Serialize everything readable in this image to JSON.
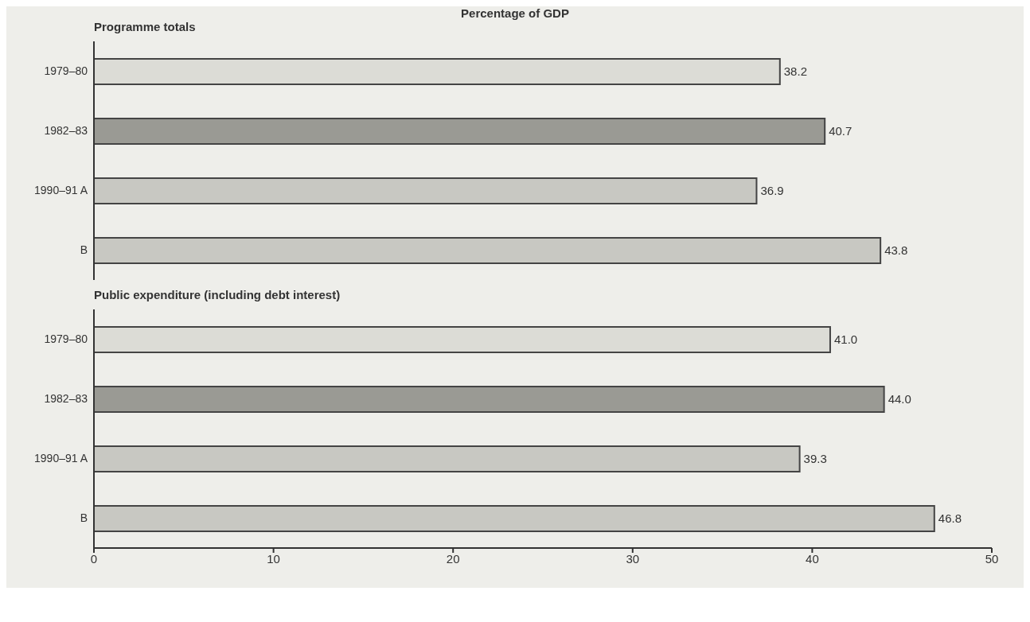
{
  "chart_data": [
    {
      "type": "bar",
      "orientation": "horizontal",
      "title": "Percentage of GDP",
      "subtitle": "Programme totals",
      "categories": [
        "1979–80",
        "1982–83",
        "1990–91 A",
        "B"
      ],
      "values": [
        38.2,
        40.7,
        36.9,
        43.8
      ],
      "value_labels": [
        "38.2",
        "40.7",
        "36.9",
        "43.8"
      ],
      "colors": [
        "#dcdcd6",
        "#9a9a94",
        "#c8c8c2",
        "#c8c8c2"
      ],
      "xlim": [
        0,
        50
      ],
      "xticks": [
        0,
        10,
        20,
        30,
        40,
        50
      ],
      "tick_labels": "y"
    },
    {
      "type": "bar",
      "orientation": "horizontal",
      "title": "Public expenditure (including debt interest)",
      "categories": [
        "1979–80",
        "1982–83",
        "1990–91 A",
        "B"
      ],
      "values": [
        41.0,
        44.0,
        39.3,
        46.8
      ],
      "value_labels": [
        "41.0",
        "44.0",
        "39.3",
        "46.8"
      ],
      "colors": [
        "#dcdcd6",
        "#9a9a94",
        "#c8c8c2",
        "#c8c8c2"
      ],
      "xlim": [
        0,
        50
      ],
      "xticks": [
        0,
        10,
        20,
        30,
        40,
        50
      ]
    }
  ]
}
